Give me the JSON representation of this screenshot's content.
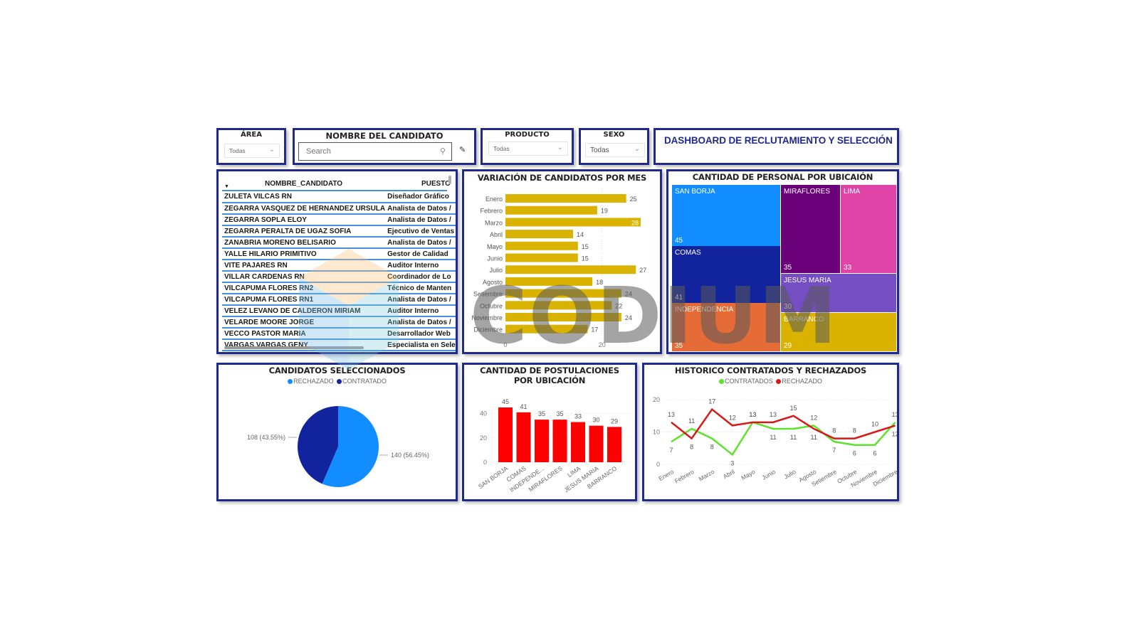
{
  "header": {
    "title": "DASHBOARD DE RECLUTAMIENTO Y SELECCIÓN"
  },
  "slicers": {
    "area": {
      "label": "ÁREA",
      "value": "Todas"
    },
    "nombre": {
      "label": "NOMBRE DEL CANDIDATO",
      "placeholder": "Search"
    },
    "producto": {
      "label": "PRODUCTO",
      "value": "Todas"
    },
    "sexo": {
      "label": "SEXO",
      "value": "Todas"
    }
  },
  "table": {
    "columns": [
      "NOMBRE_CANDIDATO",
      "PUESTO"
    ],
    "sort_indicator": "▼",
    "rows": [
      [
        "ZULETA VILCAS RN",
        "Diseñador Gráfico"
      ],
      [
        "ZEGARRA VASQUEZ DE HERNANDEZ URSULA",
        "Analista de Datos /"
      ],
      [
        "ZEGARRA SOPLA ELOY",
        "Analista de Datos /"
      ],
      [
        "ZEGARRA PERALTA DE UGAZ SOFIA",
        "Ejecutivo de Ventas"
      ],
      [
        "ZANABRIA MORENO BELISARIO",
        "Analista de Datos /"
      ],
      [
        "YALLE HILARIO PRIMITIVO",
        "Gestor de Calidad"
      ],
      [
        "VITE PAJARES RN",
        "Auditor Interno"
      ],
      [
        "VILLAR CARDENAS RN",
        "Coordinador de Lo"
      ],
      [
        "VILCAPUMA FLORES RN2",
        "Técnico de Manten"
      ],
      [
        "VILCAPUMA FLORES RN1",
        "Analista de Datos /"
      ],
      [
        "VELEZ LEVANO DE CALDERON MIRIAM",
        "Auditor Interno"
      ],
      [
        "VELARDE MOORE JORGE",
        "Analista de Datos /"
      ],
      [
        "VECCO PASTOR MARIA",
        "Desarrollador Web"
      ],
      [
        "VARGAS VARGAS GENY",
        "Especialista en Sele"
      ]
    ]
  },
  "watermark": "CODIUM",
  "colors": {
    "border": "#1f2a8c",
    "bar_gold": "#d9b300",
    "bar_red": "#ff0000",
    "pie_rechazado": "#118dff",
    "pie_contratado": "#12239e",
    "line_contratados": "#5ee22b",
    "line_rechazado": "#d61a1a"
  },
  "chart_data": [
    {
      "type": "bar",
      "orientation": "horizontal",
      "title": "VARIACIÓN DE CANDIDATOS POR MES",
      "categories": [
        "Enero",
        "Febrero",
        "Marzo",
        "Abril",
        "Mayo",
        "Junio",
        "Julio",
        "Agosto",
        "Setiembre",
        "Octubre",
        "Noviembre",
        "Diciembre"
      ],
      "values": [
        25,
        19,
        28,
        14,
        15,
        15,
        27,
        18,
        24,
        22,
        24,
        17
      ],
      "xticks": [
        "0",
        "20"
      ],
      "xlim": [
        0,
        28
      ]
    },
    {
      "type": "treemap",
      "title": "CANTIDAD DE PERSONAL POR UBICAIÓN",
      "categories": [
        "SAN BORJA",
        "COMAS",
        "INDEPENDENCIA",
        "MIRAFLORES",
        "LIMA",
        "JESUS MARIA",
        "BARRANCO"
      ],
      "values": [
        45,
        41,
        35,
        35,
        33,
        30,
        29
      ],
      "colors": [
        "#118dff",
        "#12239e",
        "#e66c37",
        "#6b007b",
        "#e044a7",
        "#744ec2",
        "#d9b300"
      ]
    },
    {
      "type": "pie",
      "title": "CANDIDATOS SELECCIONADOS",
      "legend": [
        "RECHAZADO",
        "CONTRATADO"
      ],
      "categories": [
        "RECHAZADO",
        "CONTRATADO"
      ],
      "values": [
        140,
        108
      ],
      "labels": [
        "140 (56.45%)",
        "108 (43.55%)"
      ]
    },
    {
      "type": "bar",
      "title": "CANTIDAD DE POSTULACIONES POR UBICACIÓN",
      "categories": [
        "SAN BORJA",
        "COMAS",
        "INDEPENDE...",
        "MIRAFLORES",
        "LIMA",
        "JESUS MARIA",
        "BARRANCO"
      ],
      "values": [
        45,
        41,
        35,
        35,
        33,
        30,
        29
      ],
      "yticks": [
        "0",
        "20",
        "40"
      ],
      "ylim": [
        0,
        45
      ]
    },
    {
      "type": "line",
      "title": "HISTORICO CONTRATADOS Y RECHAZADOS",
      "legend": [
        "CONTRATADOS",
        "RECHAZADO"
      ],
      "categories": [
        "Enero",
        "Febrero",
        "Marzo",
        "Abril",
        "Mayo",
        "Junio",
        "Julio",
        "Agosto",
        "Setiembre",
        "Octubre",
        "Noviembre",
        "Diciembre"
      ],
      "series": [
        {
          "name": "CONTRATADOS",
          "values": [
            7,
            11,
            8,
            3,
            13,
            11,
            11,
            12,
            7,
            6,
            6,
            13
          ]
        },
        {
          "name": "RECHAZADO",
          "values": [
            13,
            8,
            17,
            12,
            13,
            13,
            15,
            11,
            8,
            8,
            10,
            12
          ]
        }
      ],
      "yticks": [
        "0",
        "10",
        "20"
      ],
      "ylim": [
        0,
        20
      ]
    }
  ]
}
